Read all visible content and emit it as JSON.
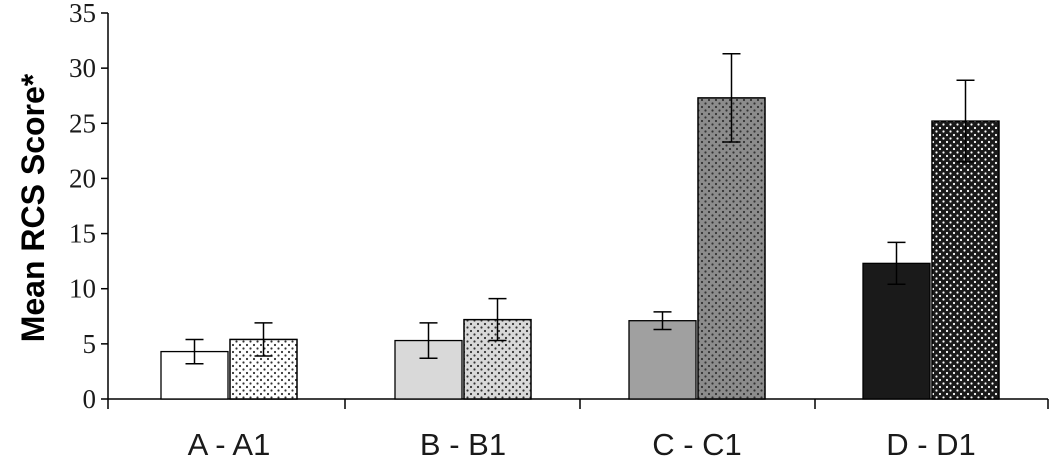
{
  "chart_data": {
    "type": "bar",
    "title": "",
    "xlabel": "",
    "ylabel": "Mean RCS Score*",
    "ylim": [
      0,
      35
    ],
    "yticks": [
      0,
      5,
      10,
      15,
      20,
      25,
      30,
      35
    ],
    "categories": [
      "A - A1",
      "B - B1",
      "C - C1",
      "D - D1"
    ],
    "grid": false,
    "legend": "none",
    "bars": [
      {
        "category": "A - A1",
        "pair": "first",
        "value": 4.3,
        "error": 1.1,
        "fill": "#ffffff",
        "pattern": "none"
      },
      {
        "category": "A - A1",
        "pair": "second",
        "value": 5.4,
        "error": 1.5,
        "fill": "#ffffff",
        "pattern": "dots"
      },
      {
        "category": "B - B1",
        "pair": "first",
        "value": 5.3,
        "error": 1.6,
        "fill": "#d9d9d9",
        "pattern": "none"
      },
      {
        "category": "B - B1",
        "pair": "second",
        "value": 7.2,
        "error": 1.9,
        "fill": "#d9d9d9",
        "pattern": "dots"
      },
      {
        "category": "C - C1",
        "pair": "first",
        "value": 7.1,
        "error": 0.8,
        "fill": "#a0a0a0",
        "pattern": "none"
      },
      {
        "category": "C - C1",
        "pair": "second",
        "value": 27.3,
        "error": 4.0,
        "fill": "#8c8c8c",
        "pattern": "dots"
      },
      {
        "category": "D - D1",
        "pair": "first",
        "value": 12.3,
        "error": 1.9,
        "fill": "#1a1a1a",
        "pattern": "none"
      },
      {
        "category": "D - D1",
        "pair": "second",
        "value": 25.2,
        "error": 3.7,
        "fill": "#1a1a1a",
        "pattern": "dots"
      }
    ]
  }
}
